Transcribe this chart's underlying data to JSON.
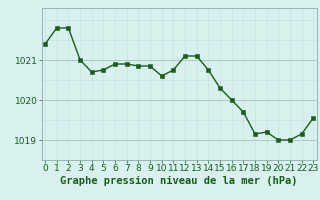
{
  "hours": [
    0,
    1,
    2,
    3,
    4,
    5,
    6,
    7,
    8,
    9,
    10,
    11,
    12,
    13,
    14,
    15,
    16,
    17,
    18,
    19,
    20,
    21,
    22,
    23
  ],
  "pressure": [
    1021.4,
    1021.8,
    1021.8,
    1021.0,
    1020.7,
    1020.75,
    1020.9,
    1020.9,
    1020.85,
    1020.85,
    1020.6,
    1020.75,
    1021.1,
    1021.1,
    1020.75,
    1020.3,
    1020.0,
    1019.7,
    1019.15,
    1019.2,
    1019.0,
    1019.0,
    1019.15,
    1019.55
  ],
  "line_color": "#1a5c1a",
  "marker_color": "#1a5c1a",
  "bg_color": "#d8f0ee",
  "grid_color_major": "#aac8c4",
  "grid_color_minor": "#c4dede",
  "xlabel": "Graphe pression niveau de la mer (hPa)",
  "xlabel_color": "#1a5c1a",
  "tick_color": "#1a5c1a",
  "spine_color": "#8aacac",
  "ylim": [
    1018.5,
    1022.3
  ],
  "yticks": [
    1019,
    1020,
    1021
  ],
  "xticks": [
    0,
    1,
    2,
    3,
    4,
    5,
    6,
    7,
    8,
    9,
    10,
    11,
    12,
    13,
    14,
    15,
    16,
    17,
    18,
    19,
    20,
    21,
    22,
    23
  ],
  "marker_size": 2.5,
  "line_width": 1.0,
  "font_size_xlabel": 7.5,
  "font_size_ticks": 6.5
}
